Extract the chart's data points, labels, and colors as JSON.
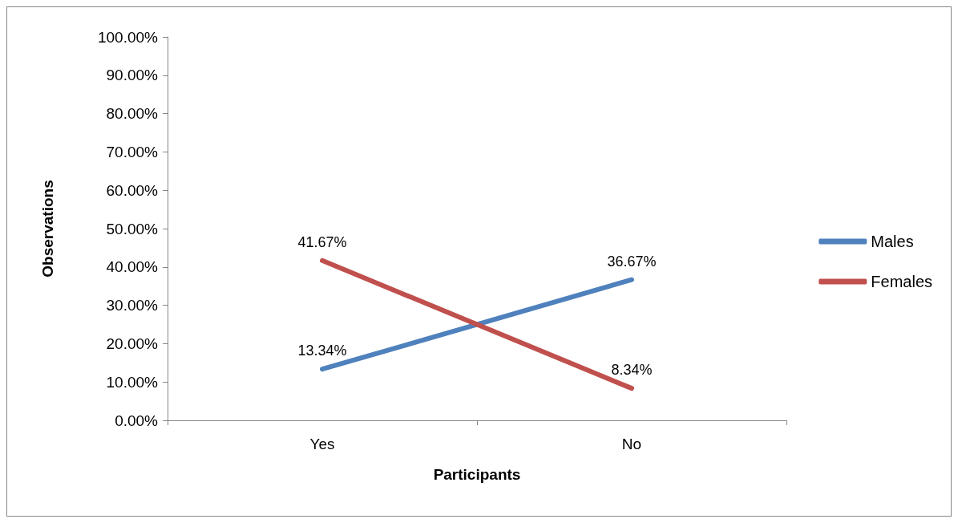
{
  "chart_data": {
    "type": "line",
    "xlabel": "Participants",
    "ylabel": "Observations",
    "categories": [
      "Yes",
      "No"
    ],
    "series": [
      {
        "name": "Males",
        "color": "#4f81bd",
        "values": [
          13.34,
          36.67
        ],
        "value_labels": [
          "13.34%",
          "36.67%"
        ]
      },
      {
        "name": "Females",
        "color": "#c0504d",
        "values": [
          41.67,
          8.34
        ],
        "value_labels": [
          "41.67%",
          "8.34%"
        ]
      }
    ],
    "ylim": [
      0,
      100
    ],
    "yticks": [
      {
        "value": 0,
        "label": "0.00%"
      },
      {
        "value": 10,
        "label": "10.00%"
      },
      {
        "value": 20,
        "label": "20.00%"
      },
      {
        "value": 30,
        "label": "30.00%"
      },
      {
        "value": 40,
        "label": "40.00%"
      },
      {
        "value": 50,
        "label": "50.00%"
      },
      {
        "value": 60,
        "label": "60.00%"
      },
      {
        "value": 70,
        "label": "70.00%"
      },
      {
        "value": 80,
        "label": "80.00%"
      },
      {
        "value": 90,
        "label": "90.00%"
      },
      {
        "value": 100,
        "label": "100.00%"
      }
    ],
    "grid": false,
    "legend": "right",
    "marker": "none",
    "line_style": "solid"
  }
}
